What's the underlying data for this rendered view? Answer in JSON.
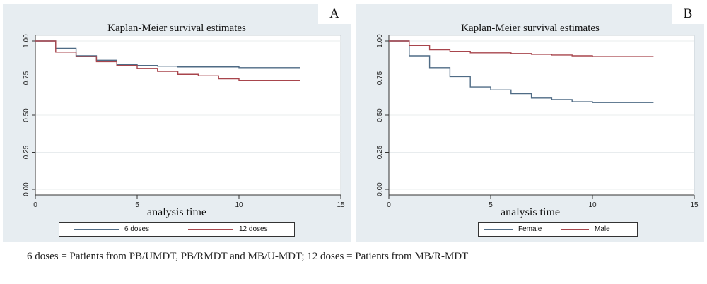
{
  "caption": "6 doses = Patients from PB/UMDT, PB/RMDT and MB/U-MDT; 12 doses = Patients from MB/R-MDT",
  "chart_data": [
    {
      "type": "line",
      "step": true,
      "panel": "A",
      "title": "Kaplan-Meier survival estimates",
      "xlabel": "analysis time",
      "ylabel": "",
      "xlim": [
        0,
        15
      ],
      "ylim": [
        0,
        1
      ],
      "xticks": [
        0,
        5,
        10,
        15
      ],
      "yticks": [
        "0.00",
        "0.25",
        "0.50",
        "0.75",
        "1.00"
      ],
      "grid": true,
      "legend_position": "bottom",
      "series": [
        {
          "name": "6 doses",
          "color": "#4f6b85",
          "x": [
            0,
            1,
            2,
            3,
            4,
            5,
            6,
            7,
            8,
            9,
            10,
            11,
            12,
            13
          ],
          "y": [
            1.0,
            0.95,
            0.9,
            0.87,
            0.84,
            0.835,
            0.83,
            0.825,
            0.825,
            0.825,
            0.82,
            0.82,
            0.82,
            0.82
          ]
        },
        {
          "name": "12 doses",
          "color": "#a8454c",
          "x": [
            0,
            1,
            2,
            3,
            4,
            5,
            6,
            7,
            8,
            9,
            10,
            11,
            12,
            13
          ],
          "y": [
            1.0,
            0.925,
            0.895,
            0.86,
            0.835,
            0.815,
            0.795,
            0.775,
            0.765,
            0.745,
            0.735,
            0.735,
            0.735,
            0.735
          ]
        }
      ]
    },
    {
      "type": "line",
      "step": true,
      "panel": "B",
      "title": "Kaplan-Meier survival estimates",
      "xlabel": "analysis time",
      "ylabel": "",
      "xlim": [
        0,
        15
      ],
      "ylim": [
        0,
        1
      ],
      "xticks": [
        0,
        5,
        10,
        15
      ],
      "yticks": [
        "0.00",
        "0.25",
        "0.50",
        "0.75",
        "1.00"
      ],
      "grid": true,
      "legend_position": "bottom",
      "series": [
        {
          "name": "Female",
          "color": "#4f6b85",
          "x": [
            0,
            1,
            2,
            3,
            4,
            5,
            6,
            7,
            8,
            9,
            10,
            11,
            12,
            13
          ],
          "y": [
            1.0,
            0.9,
            0.82,
            0.76,
            0.69,
            0.67,
            0.645,
            0.615,
            0.605,
            0.59,
            0.585,
            0.585,
            0.585,
            0.585
          ]
        },
        {
          "name": "Male",
          "color": "#a8454c",
          "x": [
            0,
            1,
            2,
            3,
            4,
            5,
            6,
            7,
            8,
            9,
            10,
            11,
            12,
            13
          ],
          "y": [
            1.0,
            0.97,
            0.94,
            0.93,
            0.92,
            0.92,
            0.915,
            0.91,
            0.905,
            0.9,
            0.895,
            0.895,
            0.895,
            0.895
          ]
        }
      ]
    }
  ]
}
